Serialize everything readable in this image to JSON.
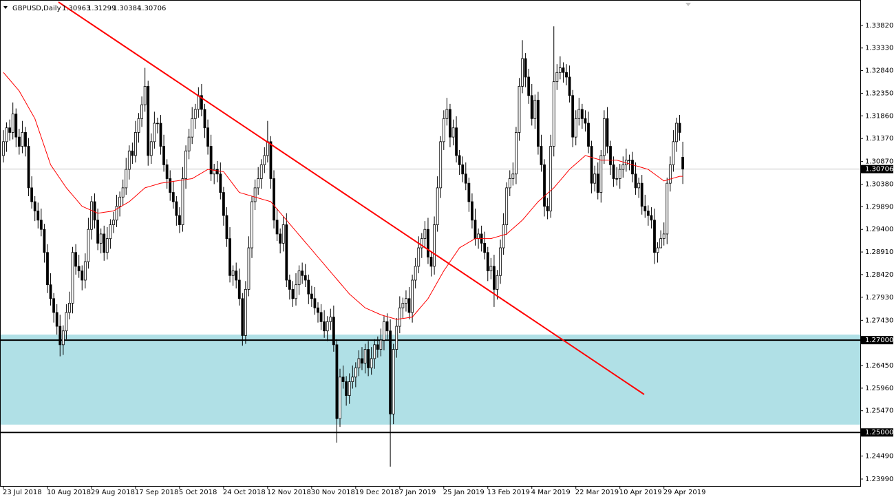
{
  "chart_data": {
    "type": "candlestick",
    "title": "GBPUSD,Daily",
    "categories": [
      "23 Jul 2018",
      null,
      null,
      null,
      null,
      null,
      null,
      null,
      null,
      null,
      null,
      null,
      null,
      null,
      "10 Aug 2018",
      null,
      null,
      null,
      null,
      null,
      null,
      null,
      null,
      null,
      null,
      null,
      null,
      null,
      "29 Aug 2018",
      null,
      null,
      null,
      null,
      null,
      null,
      null,
      null,
      null,
      null,
      null,
      null,
      null,
      "17 Sep 2018",
      null,
      null,
      null,
      null,
      null,
      null,
      null,
      null,
      null,
      null,
      null,
      null,
      null,
      "5 Oct 2018",
      null,
      null,
      null,
      null,
      null,
      null,
      null,
      null,
      null,
      null,
      null,
      null,
      null,
      "24 Oct 2018",
      null,
      null,
      null,
      null,
      null,
      null,
      null,
      null,
      null,
      null,
      null,
      null,
      null,
      "12 Nov 2018",
      null,
      null,
      null,
      null,
      null,
      null,
      null,
      null,
      null,
      null,
      null,
      null,
      null,
      "30 Nov 2018",
      null,
      null,
      null,
      null,
      null,
      null,
      null,
      null,
      null,
      null,
      null,
      null,
      null,
      "19 Dec 2018",
      null,
      null,
      null,
      null,
      null,
      null,
      null,
      null,
      null,
      null,
      null,
      null,
      null,
      "7 Jan 2019",
      null,
      null,
      null,
      null,
      null,
      null,
      null,
      null,
      null,
      null,
      null,
      null,
      null,
      "25 Jan 2019",
      null,
      null,
      null,
      null,
      null,
      null,
      null,
      null,
      null,
      null,
      null,
      null,
      null,
      "13 Feb 2019",
      null,
      null,
      null,
      null,
      null,
      null,
      null,
      null,
      null,
      null,
      null,
      null,
      null,
      "4 Mar 2019",
      null,
      null,
      null,
      null,
      null,
      null,
      null,
      null,
      null,
      null,
      null,
      null,
      null,
      "22 Mar 2019",
      null,
      null,
      null,
      null,
      null,
      null,
      null,
      null,
      null,
      null,
      null,
      null,
      null,
      "10 Apr 2019",
      null,
      null,
      null,
      null,
      null,
      null,
      null,
      null,
      null,
      null,
      null,
      null,
      null,
      "29 Apr 2019",
      null,
      null,
      null,
      null,
      null,
      null
    ],
    "open": [
      1.31,
      1.313,
      1.316,
      1.315,
      1.319,
      1.314,
      1.312,
      1.315,
      1.312,
      1.303,
      1.3,
      1.298,
      1.296,
      1.294,
      1.289,
      1.282,
      1.279,
      1.276,
      1.273,
      1.269,
      1.272,
      1.276,
      1.278,
      1.289,
      1.286,
      1.285,
      1.283,
      1.287,
      1.294,
      1.3,
      1.296,
      1.291,
      1.293,
      1.289,
      1.292,
      1.295,
      1.296,
      1.299,
      1.301,
      1.303,
      1.307,
      1.311,
      1.31,
      1.315,
      1.318,
      1.321,
      1.325,
      1.31,
      1.313,
      1.317,
      1.317,
      1.312,
      1.308,
      1.305,
      1.302,
      1.3,
      1.297,
      1.295,
      1.305,
      1.311,
      1.314,
      1.318,
      1.32,
      1.323,
      1.32,
      1.316,
      1.312,
      1.306,
      1.307,
      1.306,
      1.302,
      1.297,
      1.292,
      1.284,
      1.285,
      1.283,
      1.279,
      1.271,
      1.281,
      1.29,
      1.3,
      1.303,
      1.305,
      1.308,
      1.31,
      1.313,
      1.305,
      1.296,
      1.293,
      1.291,
      1.295,
      1.283,
      1.281,
      1.279,
      1.282,
      1.285,
      1.284,
      1.283,
      1.28,
      1.279,
      1.277,
      1.276,
      1.274,
      1.272,
      1.274,
      1.275,
      1.269,
      1.253,
      1.262,
      1.261,
      1.258,
      1.261,
      1.262,
      1.264,
      1.266,
      1.265,
      1.268,
      1.264,
      1.266,
      1.269,
      1.268,
      1.27,
      1.274,
      1.272,
      1.254,
      1.268,
      1.273,
      1.277,
      1.278,
      1.279,
      1.276,
      1.283,
      1.286,
      1.29,
      1.292,
      1.294,
      1.288,
      1.286,
      1.295,
      1.303,
      1.313,
      1.318,
      1.32,
      1.314,
      1.316,
      1.31,
      1.308,
      1.306,
      1.304,
      1.3,
      1.296,
      1.292,
      1.293,
      1.291,
      1.289,
      1.285,
      1.286,
      1.281,
      1.284,
      1.29,
      1.295,
      1.303,
      1.305,
      1.306,
      1.315,
      1.325,
      1.331,
      1.327,
      1.323,
      1.318,
      1.322,
      1.312,
      1.308,
      1.299,
      1.298,
      1.312,
      1.326,
      1.328,
      1.329,
      1.328,
      1.327,
      1.323,
      1.314,
      1.318,
      1.32,
      1.318,
      1.317,
      1.312,
      1.304,
      1.306,
      1.302,
      1.31,
      1.318,
      1.312,
      1.308,
      1.305,
      1.305,
      1.307,
      1.308,
      1.309,
      1.309,
      1.306,
      1.303,
      1.304,
      1.299,
      1.298,
      1.297,
      1.296,
      1.289,
      1.29,
      1.292,
      1.293,
      1.304,
      1.308,
      1.313,
      1.317,
      1.30963
    ],
    "high": [
      1.3155,
      1.3172,
      1.3178,
      1.3215,
      1.3202,
      1.3158,
      1.3175,
      1.3162,
      1.3138,
      1.3055,
      1.3012,
      1.2998,
      1.2985,
      1.2952,
      1.2908,
      1.2845,
      1.2802,
      1.2778,
      1.2755,
      1.2732,
      1.2778,
      1.2805,
      1.2902,
      1.2908,
      1.2885,
      1.2862,
      1.2888,
      1.2965,
      1.3012,
      1.3018,
      1.2985,
      1.2942,
      1.2948,
      1.2945,
      1.2962,
      1.2978,
      1.3015,
      1.3022,
      1.3048,
      1.3095,
      1.3122,
      1.3128,
      1.3175,
      1.3192,
      1.3228,
      1.329,
      1.3262,
      1.3148,
      1.3195,
      1.3182,
      1.3188,
      1.3145,
      1.3092,
      1.3068,
      1.3045,
      1.3012,
      1.2988,
      1.3075,
      1.3122,
      1.3158,
      1.3205,
      1.3212,
      1.3248,
      1.3255,
      1.3212,
      1.3178,
      1.3145,
      1.3082,
      1.3088,
      1.3085,
      1.3032,
      1.2988,
      1.2945,
      1.2862,
      1.2868,
      1.2855,
      1.2802,
      1.2828,
      1.2925,
      1.3012,
      1.3048,
      1.3075,
      1.3092,
      1.3118,
      1.3175,
      1.3142,
      1.3068,
      1.2985,
      1.2942,
      1.2968,
      1.2975,
      1.2842,
      1.2828,
      1.2845,
      1.2862,
      1.2868,
      1.2865,
      1.2842,
      1.2818,
      1.2815,
      1.2782,
      1.2778,
      1.2765,
      1.2752,
      1.2768,
      1.2775,
      1.2702,
      1.2638,
      1.2645,
      1.2622,
      1.2628,
      1.2645,
      1.2652,
      1.2678,
      1.2685,
      1.2692,
      1.2698,
      1.2685,
      1.2702,
      1.2708,
      1.2725,
      1.2752,
      1.2758,
      1.2745,
      1.2692,
      1.2748,
      1.2795,
      1.2792,
      1.2808,
      1.2815,
      1.2842,
      1.2878,
      1.2925,
      1.2932,
      1.2958,
      1.2965,
      1.2892,
      1.2968,
      1.3055,
      1.3142,
      1.3198,
      1.3225,
      1.3212,
      1.3178,
      1.3185,
      1.3112,
      1.3098,
      1.3085,
      1.3052,
      1.3018,
      1.2985,
      1.2942,
      1.2948,
      1.2935,
      1.2902,
      1.2878,
      1.2885,
      1.2852,
      1.2918,
      1.2975,
      1.3042,
      1.3068,
      1.3085,
      1.3162,
      1.3268,
      1.335,
      1.3322,
      1.3288,
      1.3255,
      1.3232,
      1.3238,
      1.3145,
      1.3092,
      1.3008,
      1.3145,
      1.338,
      1.3298,
      1.3315,
      1.3302,
      1.3298,
      1.3295,
      1.3242,
      1.3198,
      1.3225,
      1.3212,
      1.3198,
      1.3195,
      1.3132,
      1.3078,
      1.3085,
      1.3112,
      1.3198,
      1.3205,
      1.3132,
      1.3098,
      1.3075,
      1.3082,
      1.3098,
      1.3115,
      1.3102,
      1.3108,
      1.3085,
      1.3052,
      1.3058,
      1.3015,
      1.2992,
      1.2988,
      1.2985,
      1.2912,
      1.2938,
      1.2955,
      1.3052,
      1.3098,
      1.3155,
      1.3182,
      1.3188,
      1.31299
    ],
    "low": [
      1.3085,
      1.3108,
      1.3132,
      1.3135,
      1.3118,
      1.3102,
      1.3105,
      1.3098,
      1.3012,
      1.2985,
      1.2958,
      1.2942,
      1.2925,
      1.2868,
      1.2802,
      1.2775,
      1.2738,
      1.2712,
      1.2665,
      1.2668,
      1.2702,
      1.2745,
      1.2758,
      1.2842,
      1.2835,
      1.2808,
      1.2812,
      1.2855,
      1.2918,
      1.2942,
      1.2895,
      1.2888,
      1.2872,
      1.2875,
      1.2898,
      1.2932,
      1.2945,
      1.2968,
      1.2992,
      1.3015,
      1.3048,
      1.3082,
      1.3085,
      1.3128,
      1.3162,
      1.3195,
      1.3078,
      1.3082,
      1.3115,
      1.3148,
      1.3102,
      1.3065,
      1.3028,
      1.3002,
      1.2985,
      1.2948,
      1.2932,
      1.2935,
      1.3028,
      1.3092,
      1.3125,
      1.3158,
      1.3182,
      1.3185,
      1.3138,
      1.3102,
      1.3045,
      1.3038,
      1.3042,
      1.3005,
      1.2948,
      1.2902,
      1.2825,
      1.2818,
      1.2812,
      1.2775,
      1.2688,
      1.2692,
      1.2795,
      1.2878,
      1.2982,
      1.3015,
      1.3028,
      1.3062,
      1.3085,
      1.3028,
      1.2942,
      1.2915,
      1.2888,
      1.2892,
      1.2815,
      1.2788,
      1.2772,
      1.2775,
      1.2798,
      1.2822,
      1.2815,
      1.2778,
      1.2772,
      1.2755,
      1.2738,
      1.2722,
      1.2705,
      1.2698,
      1.2722,
      1.2675,
      1.2478,
      1.2512,
      1.2595,
      1.2558,
      1.2562,
      1.2595,
      1.2598,
      1.2622,
      1.2635,
      1.2628,
      1.2622,
      1.2625,
      1.2638,
      1.2662,
      1.2665,
      1.2678,
      1.2702,
      1.2426,
      1.2518,
      1.2662,
      1.2715,
      1.2748,
      1.2762,
      1.2745,
      1.2738,
      1.2812,
      1.2845,
      1.2878,
      1.2902,
      1.2865,
      1.2838,
      1.2842,
      1.2935,
      1.3008,
      1.3112,
      1.3165,
      1.3118,
      1.3122,
      1.3085,
      1.3058,
      1.3042,
      1.3025,
      1.2978,
      1.2942,
      1.2905,
      1.2898,
      1.2892,
      1.2875,
      1.2828,
      1.2832,
      1.2772,
      1.2788,
      1.2822,
      1.2885,
      1.2928,
      1.3012,
      1.3035,
      1.3038,
      1.3132,
      1.3235,
      1.3248,
      1.3212,
      1.3165,
      1.3158,
      1.3102,
      1.3065,
      1.2968,
      1.2962,
      1.2965,
      1.3098,
      1.3242,
      1.3265,
      1.3258,
      1.3252,
      1.3215,
      1.3118,
      1.3122,
      1.3165,
      1.3158,
      1.3152,
      1.3105,
      1.3018,
      1.3022,
      1.3005,
      1.2998,
      1.3082,
      1.3105,
      1.3058,
      1.3032,
      1.3035,
      1.3028,
      1.3052,
      1.3065,
      1.3068,
      1.3042,
      1.3015,
      1.3008,
      1.2972,
      1.2965,
      1.2948,
      1.2942,
      1.2865,
      1.2868,
      1.2902,
      1.2905,
      1.2908,
      1.3022,
      1.3065,
      1.3108,
      1.3132,
      1.30384
    ],
    "close": [
      1.313,
      1.316,
      1.315,
      1.319,
      1.314,
      1.312,
      1.315,
      1.312,
      1.303,
      1.3,
      1.298,
      1.296,
      1.294,
      1.289,
      1.282,
      1.279,
      1.276,
      1.273,
      1.269,
      1.272,
      1.276,
      1.278,
      1.289,
      1.286,
      1.285,
      1.283,
      1.287,
      1.294,
      1.3,
      1.296,
      1.291,
      1.293,
      1.289,
      1.292,
      1.295,
      1.296,
      1.299,
      1.301,
      1.303,
      1.307,
      1.311,
      1.31,
      1.315,
      1.318,
      1.321,
      1.325,
      1.31,
      1.313,
      1.317,
      1.317,
      1.312,
      1.308,
      1.305,
      1.302,
      1.3,
      1.297,
      1.295,
      1.305,
      1.311,
      1.314,
      1.318,
      1.32,
      1.323,
      1.32,
      1.316,
      1.312,
      1.306,
      1.307,
      1.306,
      1.302,
      1.297,
      1.292,
      1.284,
      1.285,
      1.283,
      1.279,
      1.271,
      1.281,
      1.29,
      1.3,
      1.303,
      1.305,
      1.308,
      1.31,
      1.313,
      1.305,
      1.296,
      1.293,
      1.291,
      1.295,
      1.283,
      1.281,
      1.279,
      1.282,
      1.285,
      1.284,
      1.283,
      1.28,
      1.279,
      1.277,
      1.276,
      1.274,
      1.272,
      1.274,
      1.275,
      1.269,
      1.253,
      1.262,
      1.261,
      1.258,
      1.261,
      1.262,
      1.264,
      1.266,
      1.265,
      1.268,
      1.264,
      1.266,
      1.269,
      1.268,
      1.27,
      1.274,
      1.272,
      1.254,
      1.268,
      1.273,
      1.277,
      1.278,
      1.279,
      1.276,
      1.283,
      1.286,
      1.29,
      1.292,
      1.294,
      1.288,
      1.286,
      1.295,
      1.303,
      1.313,
      1.318,
      1.32,
      1.314,
      1.316,
      1.31,
      1.308,
      1.306,
      1.304,
      1.3,
      1.296,
      1.292,
      1.293,
      1.291,
      1.289,
      1.285,
      1.286,
      1.281,
      1.284,
      1.29,
      1.295,
      1.303,
      1.305,
      1.306,
      1.315,
      1.325,
      1.331,
      1.327,
      1.323,
      1.318,
      1.322,
      1.312,
      1.308,
      1.299,
      1.298,
      1.312,
      1.326,
      1.328,
      1.329,
      1.328,
      1.327,
      1.323,
      1.314,
      1.318,
      1.32,
      1.318,
      1.317,
      1.312,
      1.304,
      1.306,
      1.302,
      1.31,
      1.318,
      1.312,
      1.308,
      1.305,
      1.305,
      1.307,
      1.308,
      1.309,
      1.309,
      1.306,
      1.303,
      1.304,
      1.299,
      1.298,
      1.297,
      1.296,
      1.289,
      1.29,
      1.292,
      1.293,
      1.304,
      1.308,
      1.313,
      1.317,
      1.315,
      1.30706
    ],
    "moving_average": {
      "color": "#ff0000",
      "values": [
        1.328,
        1.3272,
        1.3264,
        1.3256,
        1.3248,
        1.324,
        1.3228,
        1.3216,
        1.3204,
        1.3192,
        1.318,
        1.316,
        1.314,
        1.312,
        1.31,
        1.308,
        1.307,
        1.306,
        1.305,
        1.304,
        1.303,
        1.3022,
        1.3014,
        1.3006,
        1.2998,
        1.299,
        1.2987,
        1.2984,
        1.2981,
        1.2978,
        1.2975,
        1.2976,
        1.2977,
        1.2978,
        1.2979,
        1.298,
        1.2984,
        1.2988,
        1.2992,
        1.2996,
        1.3,
        1.3006,
        1.3012,
        1.3018,
        1.3024,
        1.303,
        1.3032,
        1.3034,
        1.3036,
        1.3038,
        1.304,
        1.3041,
        1.3042,
        1.3043,
        1.3044,
        1.3045,
        1.3046,
        1.3047,
        1.3048,
        1.3049,
        1.305,
        1.3054,
        1.3058,
        1.3062,
        1.3066,
        1.307,
        1.3069,
        1.3068,
        1.3067,
        1.3066,
        1.3065,
        1.3056,
        1.3047,
        1.3038,
        1.3029,
        1.302,
        1.3018,
        1.3016,
        1.3014,
        1.3012,
        1.301,
        1.3008,
        1.3006,
        1.3004,
        1.3002,
        1.3,
        1.2992,
        1.2984,
        1.2976,
        1.2968,
        1.296,
        1.2952,
        1.2944,
        1.2936,
        1.2928,
        1.292,
        1.2912,
        1.2904,
        1.2896,
        1.2888,
        1.288,
        1.2872,
        1.2864,
        1.2856,
        1.2848,
        1.284,
        1.2832,
        1.2824,
        1.2816,
        1.2808,
        1.28,
        1.2794,
        1.2788,
        1.2782,
        1.2776,
        1.277,
        1.2767,
        1.2764,
        1.2761,
        1.2758,
        1.2755,
        1.2753,
        1.2751,
        1.2749,
        1.2747,
        1.2745,
        1.2746,
        1.2747,
        1.2748,
        1.2749,
        1.275,
        1.2758,
        1.2766,
        1.2774,
        1.2782,
        1.279,
        1.2802,
        1.2814,
        1.2826,
        1.2838,
        1.285,
        1.286,
        1.287,
        1.288,
        1.289,
        1.29,
        1.2904,
        1.2908,
        1.2912,
        1.2916,
        1.292,
        1.292,
        1.292,
        1.292,
        1.292,
        1.292,
        1.2922,
        1.2924,
        1.2926,
        1.2928,
        1.293,
        1.2936,
        1.2942,
        1.2948,
        1.2954,
        1.296,
        1.2968,
        1.2976,
        1.2984,
        1.2992,
        1.3,
        1.3006,
        1.3012,
        1.3018,
        1.3024,
        1.303,
        1.3038,
        1.3046,
        1.3054,
        1.3062,
        1.307,
        1.3076,
        1.3082,
        1.3088,
        1.3094,
        1.31,
        1.3098,
        1.3096,
        1.3094,
        1.3092,
        1.309,
        1.309,
        1.309,
        1.309,
        1.309,
        1.309,
        1.3088,
        1.3086,
        1.3084,
        1.3082,
        1.308,
        1.3078,
        1.3076,
        1.3074,
        1.3072,
        1.307,
        1.3065,
        1.306,
        1.3055,
        1.305,
        1.3045,
        1.3047,
        1.3049,
        1.3051,
        1.3053,
        1.3055,
        1.3055
      ]
    },
    "up_color": "#ffffff",
    "down_color": "#000000",
    "outline_color": "#000000",
    "ylim": [
      1.2384,
      1.3437
    ],
    "yticks": [
      {
        "value": 1.3382,
        "label": "1.33820"
      },
      {
        "value": 1.3333,
        "label": "1.33330"
      },
      {
        "value": 1.3284,
        "label": "1.32840"
      },
      {
        "value": 1.3235,
        "label": "1.32350"
      },
      {
        "value": 1.3186,
        "label": "1.31860"
      },
      {
        "value": 1.3137,
        "label": "1.31370"
      },
      {
        "value": 1.3087,
        "label": "1.30870"
      },
      {
        "value": 1.3038,
        "label": "1.30380"
      },
      {
        "value": 1.2989,
        "label": "1.29890"
      },
      {
        "value": 1.294,
        "label": "1.29400"
      },
      {
        "value": 1.2891,
        "label": "1.28910"
      },
      {
        "value": 1.2842,
        "label": "1.28420"
      },
      {
        "value": 1.2793,
        "label": "1.27930"
      },
      {
        "value": 1.2743,
        "label": "1.27430"
      },
      {
        "value": 1.2645,
        "label": "1.26450"
      },
      {
        "value": 1.2596,
        "label": "1.25960"
      },
      {
        "value": 1.2547,
        "label": "1.25470"
      },
      {
        "value": 1.2449,
        "label": "1.24490"
      },
      {
        "value": 1.2399,
        "label": "1.23990"
      }
    ],
    "levels": [
      {
        "value": 1.27,
        "label": "1.27000"
      },
      {
        "value": 1.25,
        "label": "1.25000"
      }
    ],
    "zone": {
      "range": [
        1.2517,
        1.2712
      ],
      "color": "#b0e0e6"
    }
  }
}
